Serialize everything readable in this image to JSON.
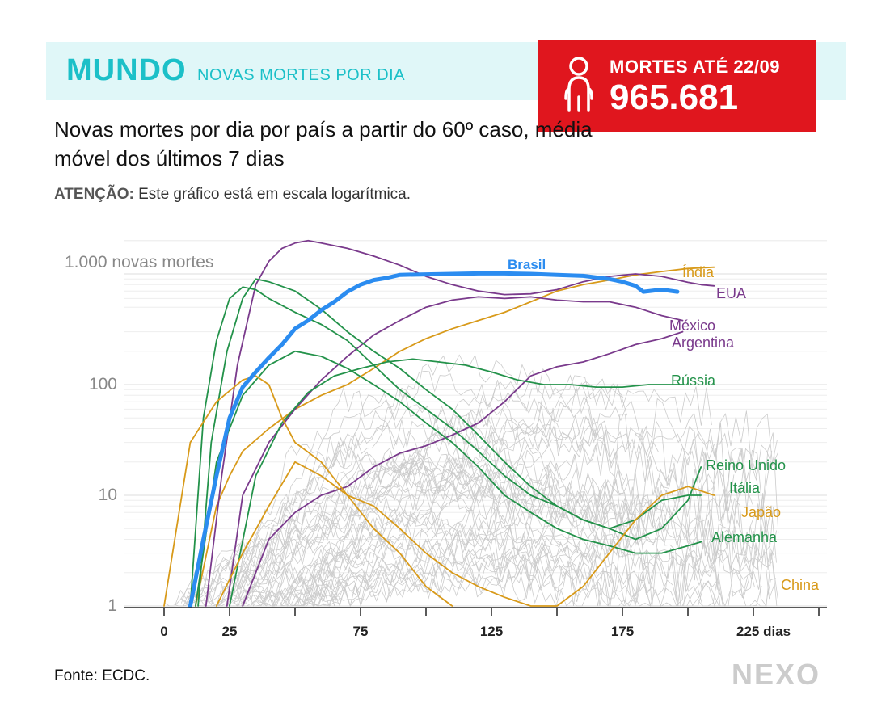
{
  "header": {
    "section": "MUNDO",
    "section_subtitle": "NOVAS MORTES POR DIA"
  },
  "deaths_box": {
    "label": "MORTES ATÉ 22/09",
    "value": "965.681",
    "icon": "person-icon",
    "color": "#e0161e"
  },
  "subtitle": "Novas mortes por dia por país a partir do 60º caso, média móvel dos últimos 7 dias",
  "note": {
    "label": "ATENÇÃO:",
    "text": " Este gráfico está em escala logarítmica."
  },
  "source": "Fonte: ECDC.",
  "logo": "NEXO",
  "colors": {
    "brasil": "#2b8cf0",
    "green": "#23924a",
    "purple": "#7a3a8c",
    "orange": "#d89a1a",
    "gray": "#cccccc",
    "accent": "#1cc0c8"
  },
  "chart_data": {
    "type": "line",
    "title": "Novas mortes por dia por país a partir do 60º caso, média móvel dos últimos 7 dias",
    "xlabel": "dias",
    "ylabel": "novas mortes",
    "yscale": "log",
    "xlim": [
      -15,
      250
    ],
    "ylim": [
      1,
      2000
    ],
    "x_ticks": [
      0,
      25,
      75,
      125,
      175,
      225
    ],
    "x_tick_labels": [
      "0",
      "25",
      "75",
      "125",
      "175",
      "225 dias"
    ],
    "y_ticks": [
      1,
      10,
      100,
      1000
    ],
    "y_tick_labels": [
      "1",
      "10",
      "100",
      "1.000 novas mortes"
    ],
    "series": [
      {
        "name": "Brasil",
        "group": "brasil",
        "x": [
          10,
          15,
          20,
          25,
          30,
          35,
          40,
          45,
          50,
          55,
          60,
          65,
          70,
          75,
          80,
          85,
          90,
          100,
          110,
          120,
          130,
          140,
          150,
          160,
          170,
          175,
          180,
          183,
          190,
          196
        ],
        "y": [
          1,
          4,
          15,
          50,
          95,
          130,
          175,
          230,
          320,
          380,
          470,
          560,
          690,
          800,
          880,
          920,
          980,
          990,
          1000,
          1010,
          1010,
          1000,
          980,
          960,
          900,
          850,
          780,
          690,
          720,
          690
        ]
      },
      {
        "name": "Índia",
        "group": "orange",
        "x": [
          12,
          20,
          25,
          30,
          40,
          50,
          60,
          70,
          80,
          90,
          100,
          110,
          120,
          130,
          140,
          150,
          160,
          170,
          180,
          190,
          200,
          210
        ],
        "y": [
          1,
          8,
          15,
          25,
          40,
          60,
          80,
          100,
          140,
          200,
          260,
          320,
          380,
          450,
          560,
          700,
          800,
          880,
          980,
          1050,
          1120,
          1150
        ]
      },
      {
        "name": "EUA",
        "group": "purple",
        "x": [
          16,
          22,
          28,
          35,
          40,
          45,
          50,
          55,
          60,
          70,
          80,
          90,
          100,
          110,
          120,
          130,
          140,
          150,
          160,
          170,
          180,
          190,
          200,
          205,
          210
        ],
        "y": [
          1,
          15,
          150,
          800,
          1300,
          1700,
          1900,
          2000,
          1900,
          1700,
          1450,
          1200,
          950,
          800,
          700,
          650,
          660,
          720,
          850,
          950,
          1000,
          950,
          840,
          800,
          780
        ]
      },
      {
        "name": "México",
        "group": "purple",
        "x": [
          24,
          30,
          40,
          50,
          60,
          70,
          80,
          90,
          100,
          110,
          120,
          130,
          140,
          150,
          160,
          170,
          180,
          190,
          198
        ],
        "y": [
          1,
          10,
          30,
          60,
          110,
          180,
          280,
          380,
          500,
          580,
          620,
          600,
          620,
          580,
          560,
          560,
          500,
          420,
          380
        ]
      },
      {
        "name": "Argentina",
        "group": "purple",
        "x": [
          30,
          40,
          50,
          60,
          70,
          80,
          90,
          100,
          110,
          120,
          130,
          140,
          150,
          160,
          170,
          180,
          190,
          198
        ],
        "y": [
          1,
          4,
          7,
          10,
          12,
          18,
          24,
          28,
          35,
          45,
          70,
          120,
          145,
          160,
          190,
          230,
          260,
          300
        ]
      },
      {
        "name": "Rússia",
        "group": "green",
        "x": [
          25,
          35,
          45,
          55,
          65,
          75,
          85,
          95,
          105,
          115,
          125,
          135,
          145,
          155,
          165,
          175,
          185,
          190,
          198
        ],
        "y": [
          1,
          15,
          45,
          85,
          120,
          140,
          160,
          170,
          160,
          150,
          130,
          110,
          100,
          100,
          95,
          95,
          100,
          100,
          100
        ]
      },
      {
        "name": "Reino Unido",
        "group": "green",
        "x": [
          13,
          18,
          24,
          30,
          35,
          40,
          50,
          60,
          70,
          80,
          90,
          100,
          110,
          120,
          130,
          140,
          150,
          160,
          170,
          180,
          190,
          200,
          205
        ],
        "y": [
          1,
          30,
          200,
          600,
          900,
          850,
          700,
          480,
          300,
          200,
          140,
          90,
          60,
          35,
          20,
          12,
          8,
          6,
          5,
          4,
          5,
          9,
          18
        ]
      },
      {
        "name": "Itália",
        "group": "green",
        "x": [
          10,
          15,
          20,
          25,
          30,
          35,
          40,
          50,
          60,
          70,
          80,
          90,
          100,
          110,
          120,
          130,
          140,
          150,
          160,
          170,
          180,
          190,
          200,
          205
        ],
        "y": [
          1,
          50,
          250,
          600,
          760,
          720,
          600,
          450,
          350,
          250,
          150,
          90,
          60,
          40,
          25,
          15,
          10,
          8,
          6,
          5,
          6,
          9,
          10,
          10
        ]
      },
      {
        "name": "Alemanha",
        "group": "green",
        "x": [
          12,
          20,
          30,
          40,
          50,
          60,
          70,
          80,
          90,
          100,
          110,
          120,
          130,
          140,
          150,
          160,
          170,
          180,
          190,
          200,
          205
        ],
        "y": [
          1,
          20,
          80,
          150,
          200,
          180,
          140,
          100,
          70,
          45,
          30,
          18,
          10,
          7,
          5,
          4,
          3.5,
          3,
          3,
          3.5,
          3.8
        ]
      },
      {
        "name": "Japão",
        "group": "orange",
        "x": [
          20,
          30,
          40,
          50,
          60,
          70,
          80,
          90,
          100,
          110,
          120,
          130,
          140,
          150,
          160,
          170,
          180,
          190,
          200,
          210
        ],
        "y": [
          1,
          3,
          8,
          20,
          15,
          10,
          8,
          5,
          3,
          2,
          1.5,
          1.2,
          1,
          1,
          1.5,
          3,
          6,
          10,
          12,
          10
        ]
      },
      {
        "name": "China",
        "group": "orange",
        "x": [
          0,
          10,
          20,
          30,
          35,
          40,
          45,
          50,
          60,
          70,
          80,
          90,
          100,
          110
        ],
        "y": [
          1,
          30,
          70,
          110,
          120,
          100,
          50,
          30,
          20,
          10,
          5,
          3,
          1.5,
          1
        ]
      }
    ],
    "gray_series_note": "outros países"
  }
}
